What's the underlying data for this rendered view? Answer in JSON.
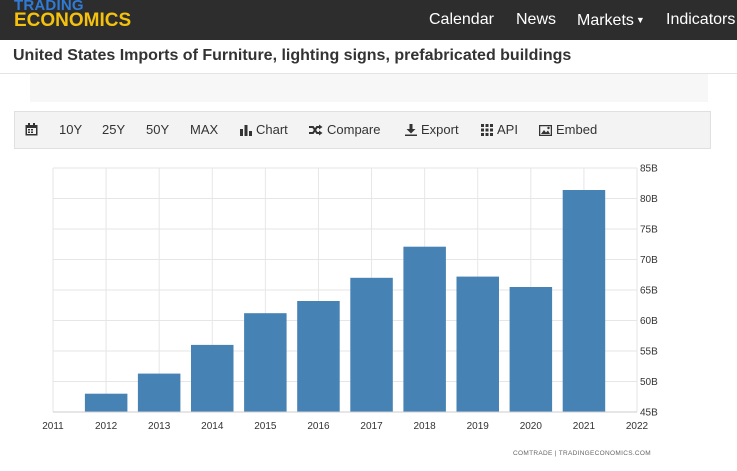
{
  "logo": {
    "line1": "TRADING",
    "line2": "ECONOMICS"
  },
  "nav": {
    "calendar": "Calendar",
    "news": "News",
    "markets": "Markets",
    "indicators": "Indicators"
  },
  "page": {
    "title": "United States Imports of Furniture, lighting signs, prefabricated buildings"
  },
  "toolbar": {
    "r10y": "10Y",
    "r25y": "25Y",
    "r50y": "50Y",
    "max": "MAX",
    "chart": "Chart",
    "compare": "Compare",
    "export": "Export",
    "api": "API",
    "embed": "Embed"
  },
  "colors": {
    "bar": "#4682b4",
    "nav_bg": "#2d2d2d",
    "logo_trading": "#2f7bd6",
    "logo_economics": "#f4c20d"
  },
  "icons": [
    "calendar-icon",
    "bar-chart-icon",
    "shuffle-icon",
    "download-icon",
    "grid-icon",
    "image-icon",
    "caret-down-icon"
  ],
  "chart_data": {
    "type": "bar",
    "title": "",
    "xlabel": "",
    "ylabel": "",
    "categories": [
      "2012",
      "2013",
      "2014",
      "2015",
      "2016",
      "2017",
      "2018",
      "2019",
      "2020",
      "2021"
    ],
    "values": [
      48.0,
      51.3,
      56.0,
      61.2,
      63.2,
      67.0,
      72.1,
      67.2,
      65.5,
      81.4
    ],
    "x_ticks": [
      "2011",
      "2012",
      "2013",
      "2014",
      "2015",
      "2016",
      "2017",
      "2018",
      "2019",
      "2020",
      "2021",
      "2022"
    ],
    "y_ticks": [
      "45B",
      "50B",
      "55B",
      "60B",
      "65B",
      "70B",
      "75B",
      "80B",
      "85B"
    ],
    "ylim": [
      45,
      85
    ],
    "xlim": [
      2011,
      2022
    ],
    "grid": true,
    "y_axis_side": "right",
    "source": "COMTRADE | TRADINGECONOMICS.COM"
  }
}
